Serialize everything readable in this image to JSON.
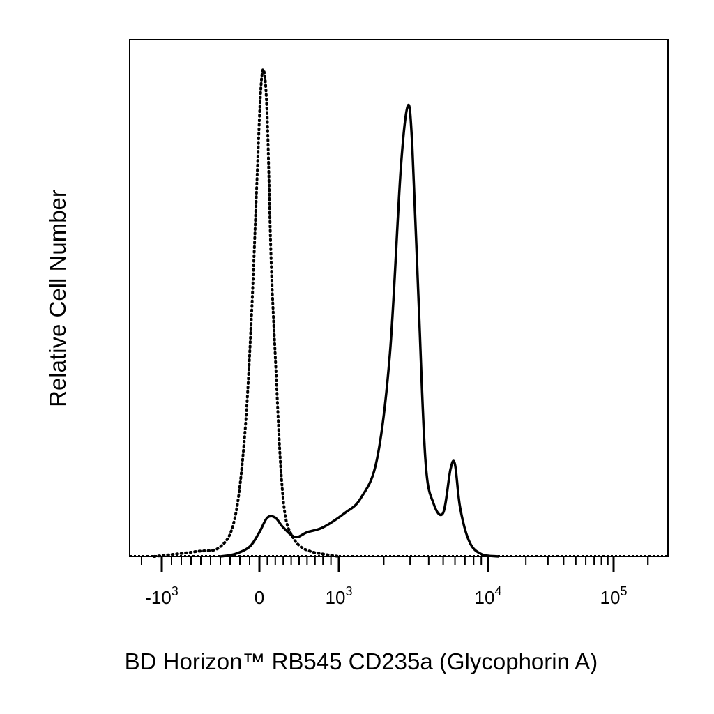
{
  "chart_data": {
    "type": "line",
    "title": "",
    "xlabel": "BD Horizon™ RB545 CD235a (Glycophorin A)",
    "ylabel": "Relative Cell Number",
    "x_scale": "biexponential",
    "xlim": [
      -3000,
      300000
    ],
    "ylim": [
      0,
      1
    ],
    "grid": false,
    "legend": "none",
    "x_ticks": [
      {
        "value": -1000,
        "base": "-10",
        "exp": "3"
      },
      {
        "value": 0,
        "base": "0",
        "exp": ""
      },
      {
        "value": 1000,
        "base": "10",
        "exp": "3"
      },
      {
        "value": 10000,
        "base": "10",
        "exp": "4"
      },
      {
        "value": 100000,
        "base": "10",
        "exp": "5"
      }
    ],
    "series": [
      {
        "style": "dotted",
        "color": "#000000",
        "x": [
          -1300,
          -650,
          -400,
          -250,
          -150,
          -80,
          -20,
          20,
          60,
          100,
          150,
          210,
          270,
          330,
          420,
          520,
          650,
          800,
          1000
        ],
        "y": [
          0.0,
          0.01,
          0.02,
          0.08,
          0.25,
          0.5,
          0.8,
          0.97,
          1.0,
          0.9,
          0.6,
          0.38,
          0.18,
          0.08,
          0.04,
          0.02,
          0.01,
          0.005,
          0.0
        ]
      },
      {
        "style": "solid",
        "color": "#000000",
        "x": [
          -400,
          -250,
          -100,
          0,
          100,
          200,
          300,
          450,
          600,
          800,
          1100,
          1400,
          1800,
          2200,
          2600,
          2900,
          3100,
          3400,
          3800,
          4300,
          5000,
          5600,
          6000,
          6500,
          7500,
          9000,
          12000
        ],
        "y": [
          0.0,
          0.005,
          0.02,
          0.05,
          0.08,
          0.08,
          0.06,
          0.04,
          0.05,
          0.06,
          0.09,
          0.12,
          0.2,
          0.42,
          0.8,
          0.93,
          0.85,
          0.55,
          0.2,
          0.11,
          0.09,
          0.18,
          0.19,
          0.1,
          0.03,
          0.005,
          0.0
        ]
      }
    ]
  }
}
